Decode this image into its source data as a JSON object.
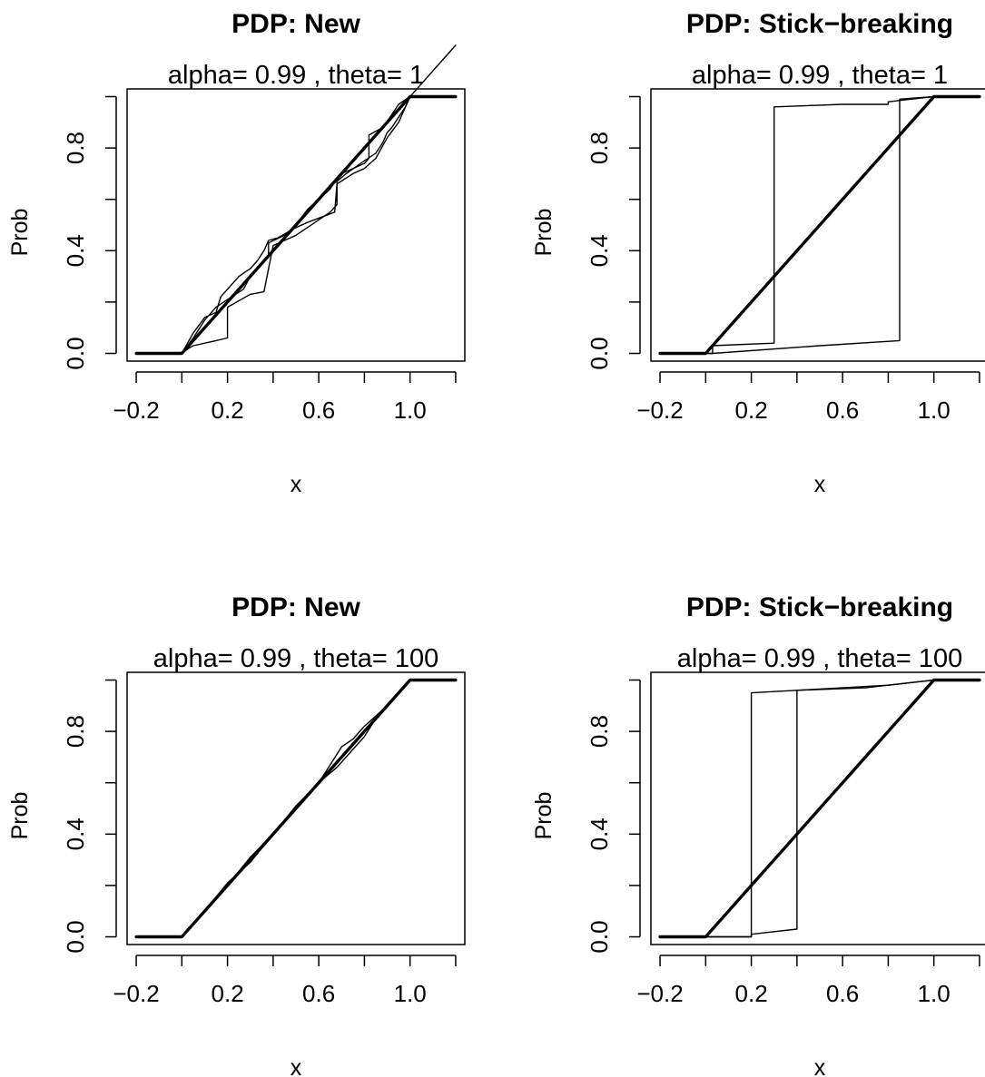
{
  "chart_data": [
    {
      "type": "line",
      "title": "PDP: New",
      "subtitle": "alpha= 0.99 , theta= 1",
      "xlabel": "x",
      "ylabel": "Prob",
      "xlim": [
        -0.24,
        1.24
      ],
      "ylim": [
        -0.03,
        1.03
      ],
      "xticks": [
        -0.2,
        0.2,
        0.6,
        1.0
      ],
      "yticks": [
        0.0,
        0.4,
        0.8
      ],
      "xtick_labels": [
        "−0.2",
        "0.2",
        "0.6",
        "1.0"
      ],
      "ytick_labels": [
        "0.0",
        "0.4",
        "0.8"
      ],
      "grid": false,
      "series": [
        {
          "style": "thick",
          "x": [
            -0.2,
            0,
            1,
            1.2
          ],
          "y": [
            0,
            0,
            1,
            1
          ]
        },
        {
          "style": "thin",
          "x": [
            -0.2,
            0,
            0.03,
            0.05,
            0.1,
            0.15,
            0.2,
            0.2,
            0.28,
            0.3,
            0.36,
            0.4,
            0.45,
            0.5,
            0.55,
            0.6,
            0.65,
            0.68,
            0.68,
            0.72,
            0.8,
            0.85,
            0.88,
            0.9,
            0.92,
            0.95,
            0.98,
            1,
            1.2
          ],
          "y": [
            0,
            0,
            0.02,
            0.03,
            0.04,
            0.05,
            0.06,
            0.18,
            0.22,
            0.23,
            0.24,
            0.42,
            0.44,
            0.46,
            0.49,
            0.52,
            0.55,
            0.58,
            0.67,
            0.7,
            0.75,
            0.78,
            0.82,
            0.86,
            0.88,
            0.92,
            0.96,
            1,
            1
          ]
        },
        {
          "style": "thin",
          "x": [
            -0.2,
            0,
            0.05,
            0.1,
            0.15,
            0.2,
            0.27,
            0.3,
            0.35,
            0.38,
            0.38,
            0.45,
            0.5,
            0.55,
            0.6,
            0.65,
            0.67,
            0.7,
            0.8,
            0.82,
            0.82,
            0.88,
            0.92,
            0.95,
            1,
            1.2
          ],
          "y": [
            0,
            0,
            0.06,
            0.13,
            0.18,
            0.21,
            0.25,
            0.3,
            0.35,
            0.38,
            0.43,
            0.46,
            0.5,
            0.56,
            0.6,
            0.64,
            0.67,
            0.7,
            0.74,
            0.76,
            0.85,
            0.88,
            0.93,
            0.97,
            1,
            1.2
          ]
        },
        {
          "style": "thin",
          "x": [
            -0.2,
            0,
            0.05,
            0.1,
            0.15,
            0.17,
            0.22,
            0.25,
            0.3,
            0.33,
            0.36,
            0.38,
            0.42,
            0.5,
            0.55,
            0.67,
            0.68,
            0.75,
            0.8,
            0.85,
            0.9,
            0.95,
            1,
            1.2
          ],
          "y": [
            0,
            0,
            0.08,
            0.14,
            0.16,
            0.22,
            0.27,
            0.3,
            0.33,
            0.36,
            0.4,
            0.44,
            0.45,
            0.49,
            0.51,
            0.55,
            0.66,
            0.7,
            0.72,
            0.76,
            0.84,
            0.9,
            1,
            1
          ]
        }
      ]
    },
    {
      "type": "line",
      "title": "PDP:  Stick−breaking",
      "subtitle": "alpha= 0.99 , theta= 1",
      "xlabel": "x",
      "ylabel": "Prob",
      "xlim": [
        -0.24,
        1.24
      ],
      "ylim": [
        -0.03,
        1.03
      ],
      "xticks": [
        -0.2,
        0.2,
        0.6,
        1.0
      ],
      "yticks": [
        0.0,
        0.4,
        0.8
      ],
      "xtick_labels": [
        "−0.2",
        "0.2",
        "0.6",
        "1.0"
      ],
      "ytick_labels": [
        "0.0",
        "0.4",
        "0.8"
      ],
      "grid": false,
      "series": [
        {
          "style": "thick",
          "x": [
            -0.2,
            0,
            1,
            1.2
          ],
          "y": [
            0,
            0,
            1,
            1
          ]
        },
        {
          "style": "thin",
          "x": [
            -0.2,
            0.03,
            0.03,
            0.3,
            0.3,
            0.6,
            0.8,
            0.8,
            1,
            1.2
          ],
          "y": [
            0,
            0,
            0.03,
            0.04,
            0.96,
            0.97,
            0.97,
            0.98,
            1,
            1
          ]
        },
        {
          "style": "thin",
          "x": [
            -0.2,
            0.03,
            0.5,
            0.85,
            0.85,
            1,
            1.2
          ],
          "y": [
            0,
            0,
            0.03,
            0.05,
            0.99,
            1,
            1
          ]
        }
      ]
    },
    {
      "type": "line",
      "title": "PDP: New",
      "subtitle": "alpha= 0.99 , theta= 100",
      "xlabel": "x",
      "ylabel": "Prob",
      "xlim": [
        -0.24,
        1.24
      ],
      "ylim": [
        -0.03,
        1.03
      ],
      "xticks": [
        -0.2,
        0.2,
        0.6,
        1.0
      ],
      "yticks": [
        0.0,
        0.4,
        0.8
      ],
      "xtick_labels": [
        "−0.2",
        "0.2",
        "0.6",
        "1.0"
      ],
      "ytick_labels": [
        "0.0",
        "0.4",
        "0.8"
      ],
      "grid": false,
      "series": [
        {
          "style": "thick",
          "x": [
            -0.2,
            0,
            1,
            1.2
          ],
          "y": [
            0,
            0,
            1,
            1
          ]
        },
        {
          "style": "thin",
          "x": [
            -0.2,
            0,
            0.1,
            0.2,
            0.3,
            0.4,
            0.5,
            0.6,
            0.68,
            0.75,
            0.8,
            0.85,
            0.9,
            1,
            1.2
          ],
          "y": [
            0,
            0,
            0.1,
            0.2,
            0.31,
            0.4,
            0.5,
            0.6,
            0.66,
            0.73,
            0.78,
            0.85,
            0.9,
            1,
            1
          ]
        },
        {
          "style": "thin",
          "x": [
            -0.2,
            0,
            0.1,
            0.2,
            0.3,
            0.4,
            0.5,
            0.6,
            0.7,
            0.75,
            0.8,
            0.9,
            1,
            1.2
          ],
          "y": [
            0,
            0,
            0.1,
            0.21,
            0.29,
            0.4,
            0.51,
            0.6,
            0.74,
            0.77,
            0.82,
            0.9,
            1,
            1
          ]
        }
      ]
    },
    {
      "type": "line",
      "title": "PDP:  Stick−breaking",
      "subtitle": "alpha= 0.99 , theta= 100",
      "xlabel": "x",
      "ylabel": "Prob",
      "xlim": [
        -0.24,
        1.24
      ],
      "ylim": [
        -0.03,
        1.03
      ],
      "xticks": [
        -0.2,
        0.2,
        0.6,
        1.0
      ],
      "yticks": [
        0.0,
        0.4,
        0.8
      ],
      "xtick_labels": [
        "−0.2",
        "0.2",
        "0.6",
        "1.0"
      ],
      "ytick_labels": [
        "0.0",
        "0.4",
        "0.8"
      ],
      "grid": false,
      "series": [
        {
          "style": "thick",
          "x": [
            -0.2,
            0,
            1,
            1.2
          ],
          "y": [
            0,
            0,
            1,
            1
          ]
        },
        {
          "style": "thin",
          "x": [
            -0.2,
            0.2,
            0.2,
            0.4,
            0.4,
            0.7,
            0.9,
            1,
            1.2
          ],
          "y": [
            0,
            0,
            0.95,
            0.96,
            0.96,
            0.97,
            0.99,
            1,
            1
          ]
        },
        {
          "style": "thin",
          "x": [
            -0.2,
            0.2,
            0.2,
            0.3,
            0.4,
            0.4,
            0.8,
            1,
            1.2
          ],
          "y": [
            0,
            0,
            0.01,
            0.02,
            0.03,
            0.96,
            0.98,
            1,
            1
          ]
        }
      ]
    }
  ]
}
